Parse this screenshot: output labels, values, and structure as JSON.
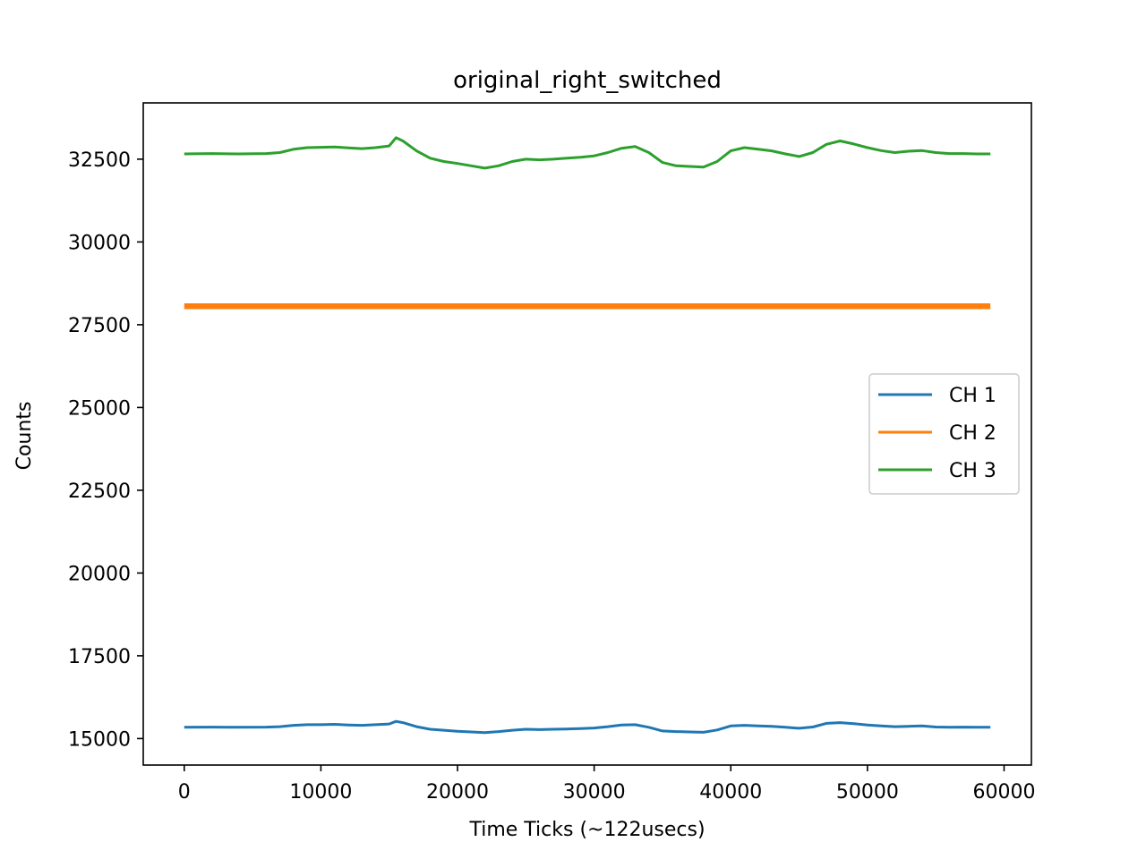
{
  "chart_data": {
    "type": "line",
    "title": "original_right_switched",
    "xlabel": "Time Ticks (~122usecs)",
    "ylabel": "Counts",
    "xlim": [
      -3000,
      62000
    ],
    "ylim": [
      14200,
      34200
    ],
    "xticks": [
      0,
      10000,
      20000,
      30000,
      40000,
      50000,
      60000
    ],
    "yticks": [
      15000,
      17500,
      20000,
      22500,
      25000,
      27500,
      30000,
      32500
    ],
    "grid": false,
    "legend_position": "center-right",
    "x_range": [
      0,
      59000
    ],
    "series": [
      {
        "name": "CH 1",
        "color": "#1f77b4",
        "x": [
          0,
          2000,
          4000,
          6000,
          7000,
          8000,
          9000,
          10000,
          11000,
          12000,
          13000,
          14000,
          15000,
          15500,
          16000,
          17000,
          18000,
          19000,
          20000,
          21000,
          22000,
          23000,
          24000,
          25000,
          26000,
          27000,
          28000,
          29000,
          30000,
          31000,
          32000,
          33000,
          34000,
          35000,
          36000,
          37000,
          38000,
          39000,
          40000,
          41000,
          42000,
          43000,
          44000,
          45000,
          46000,
          47000,
          48000,
          49000,
          50000,
          51000,
          52000,
          53000,
          54000,
          55000,
          56000,
          57000,
          58000,
          59000
        ],
        "y": [
          15340,
          15345,
          15340,
          15345,
          15360,
          15400,
          15420,
          15420,
          15430,
          15410,
          15400,
          15420,
          15440,
          15520,
          15480,
          15360,
          15280,
          15250,
          15220,
          15200,
          15180,
          15210,
          15250,
          15280,
          15270,
          15280,
          15290,
          15300,
          15320,
          15360,
          15410,
          15420,
          15340,
          15230,
          15210,
          15200,
          15190,
          15260,
          15380,
          15400,
          15380,
          15370,
          15340,
          15310,
          15350,
          15460,
          15480,
          15450,
          15410,
          15380,
          15360,
          15370,
          15380,
          15350,
          15340,
          15345,
          15340,
          15340
        ]
      },
      {
        "name": "CH 2",
        "color": "#ff7f0e",
        "x": [
          0,
          59000
        ],
        "y": [
          28060,
          28060
        ]
      },
      {
        "name": "CH 3",
        "color": "#2ca02c",
        "x": [
          0,
          2000,
          4000,
          6000,
          7000,
          8000,
          9000,
          10000,
          11000,
          12000,
          13000,
          14000,
          15000,
          15500,
          16000,
          17000,
          18000,
          19000,
          20000,
          21000,
          22000,
          23000,
          24000,
          25000,
          26000,
          27000,
          28000,
          29000,
          30000,
          31000,
          32000,
          33000,
          34000,
          35000,
          36000,
          37000,
          38000,
          39000,
          40000,
          41000,
          42000,
          43000,
          44000,
          45000,
          46000,
          47000,
          48000,
          49000,
          50000,
          51000,
          52000,
          53000,
          54000,
          55000,
          56000,
          57000,
          58000,
          59000
        ],
        "y": [
          32660,
          32670,
          32660,
          32670,
          32700,
          32800,
          32850,
          32860,
          32870,
          32840,
          32820,
          32850,
          32900,
          33150,
          33050,
          32750,
          32530,
          32430,
          32370,
          32300,
          32230,
          32300,
          32430,
          32500,
          32480,
          32500,
          32530,
          32560,
          32600,
          32700,
          32830,
          32880,
          32700,
          32400,
          32300,
          32280,
          32260,
          32430,
          32750,
          32850,
          32800,
          32750,
          32660,
          32580,
          32700,
          32950,
          33050,
          32960,
          32850,
          32760,
          32700,
          32740,
          32760,
          32700,
          32670,
          32670,
          32660,
          32660
        ]
      }
    ]
  }
}
